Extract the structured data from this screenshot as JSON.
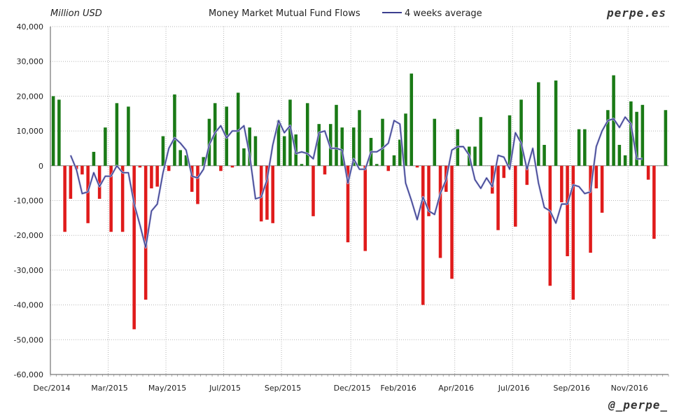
{
  "header": {
    "unit_label": "Million USD",
    "title": "Money Market Mutual Fund Flows",
    "legend_label": "4 weeks average",
    "brand_top": "perpe.es",
    "brand_bottom": "@_perpe_"
  },
  "colors": {
    "inflow": "#1a7a16",
    "outflow": "#e01b1b",
    "average_line": "#3c3f8f",
    "grid": "#b5b5b5"
  },
  "chart_data": {
    "type": "bar",
    "title": "Money Market Mutual Fund Flows",
    "ylabel": "Million USD",
    "ylim": [
      -60000,
      40000
    ],
    "y_ticks": [
      "-60,000",
      "-50,000",
      "-40,000",
      "-30,000",
      "-20,000",
      "-10,000",
      "0",
      "10,000",
      "20,000",
      "30,000",
      "40,000"
    ],
    "x_tick_labels": [
      "Dec/2014",
      "Mar/2015",
      "May/2015",
      "Jul/2015",
      "Sep/2015",
      "Dec/2015",
      "Feb/2016",
      "Apr/2016",
      "Jul/2016",
      "Sep/2016",
      "Nov/2016"
    ],
    "x_tick_week_index": [
      0,
      10,
      20,
      30,
      40,
      52,
      60,
      70,
      80,
      90,
      100
    ],
    "bar_count": 107,
    "series": [
      {
        "name": "",
        "type": "bar",
        "values": [
          20000,
          19000,
          -19000,
          -9500,
          -1000,
          -2500,
          -16500,
          4000,
          -9500,
          11000,
          -19000,
          18000,
          -19000,
          17000,
          -47000,
          -500,
          -38500,
          -6500,
          -6000,
          8500,
          -1500,
          20500,
          4500,
          3000,
          -7500,
          -11000,
          2500,
          13500,
          18000,
          -1500,
          17000,
          -500,
          21000,
          5000,
          11000,
          8500,
          -16000,
          -15500,
          -16500,
          13000,
          8500,
          19000,
          9000,
          500,
          18000,
          -14500,
          12000,
          -2500,
          12000,
          17500,
          11000,
          -22000,
          11000,
          16000,
          -24500,
          8000,
          500,
          13500,
          -1500,
          3000,
          7500,
          15000,
          26500,
          -500,
          -40000,
          -14500,
          13500,
          -26500,
          -7500,
          -32500,
          10500,
          0,
          5500,
          5500,
          14000,
          0,
          -8000,
          -18500,
          -3500,
          14500,
          -17500,
          19000,
          -5500,
          0,
          24000,
          6000,
          -34500,
          24500,
          -10500,
          -26000,
          -38500,
          10500,
          10500,
          -25000,
          -6500,
          -13500,
          16000,
          26000,
          6000,
          3000,
          18500,
          15500,
          17500,
          -4000,
          -21000,
          0,
          16000
        ]
      },
      {
        "name": "4 weeks average",
        "type": "line",
        "start_index": 3,
        "values": [
          3000,
          -1000,
          -8000,
          -7500,
          -2000,
          -6000,
          -3000,
          -3000,
          0,
          -2000,
          -2000,
          -11000,
          -17000,
          -23500,
          -13000,
          -11000,
          -2000,
          5000,
          8000,
          6500,
          4500,
          -3000,
          -3500,
          -1000,
          6000,
          9500,
          11500,
          8000,
          10000,
          10000,
          11500,
          3000,
          -9500,
          -9000,
          -4000,
          6000,
          13000,
          9500,
          11500,
          3500,
          4000,
          3500,
          2000,
          9500,
          10000,
          5000,
          5000,
          4500,
          -5000,
          2000,
          -1000,
          -1000,
          4000,
          4000,
          5000,
          6500,
          13000,
          12000,
          -5000,
          -10000,
          -15500,
          -9000,
          -13000,
          -14000,
          -8000,
          -4000,
          4500,
          5500,
          5500,
          3000,
          -4000,
          -6500,
          -3500,
          -6000,
          3000,
          2500,
          -1000,
          9500,
          6500,
          -1000,
          5000,
          -5000,
          -12000,
          -13000,
          -16500,
          -11000,
          -11000,
          -5500,
          -6000,
          -8000,
          -7500,
          5500,
          10000,
          13000,
          13500,
          11000,
          14000,
          12000,
          2000,
          2000
        ]
      }
    ]
  }
}
